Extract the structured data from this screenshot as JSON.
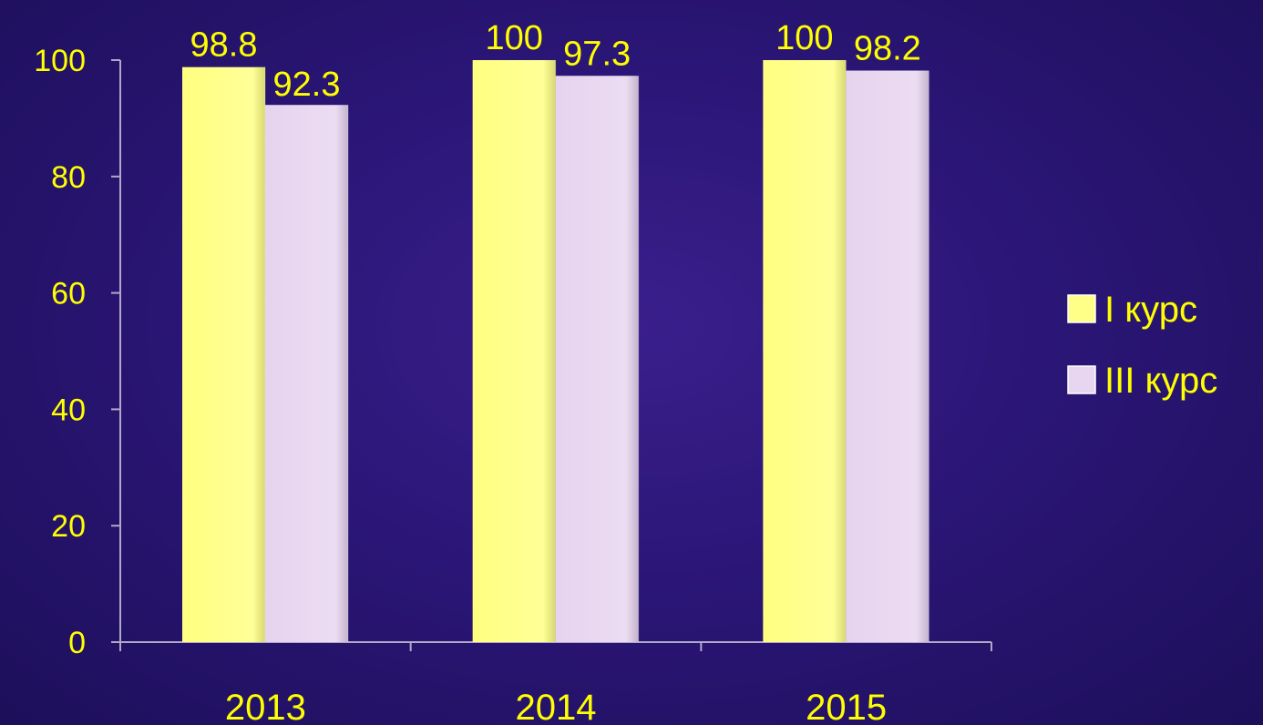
{
  "chart_data": {
    "type": "bar",
    "categories": [
      "2013",
      "2014",
      "2015"
    ],
    "series": [
      {
        "name": "I курс",
        "values": [
          98.8,
          100,
          100
        ],
        "color": "#ffff88"
      },
      {
        "name": "III курс",
        "values": [
          92.3,
          97.3,
          98.2
        ],
        "color": "#e8d6f0"
      }
    ],
    "data_labels": [
      [
        "98.8",
        "100",
        "100"
      ],
      [
        "92.3",
        "97.3",
        "98.2"
      ]
    ],
    "y_ticks": [
      "0",
      "20",
      "40",
      "60",
      "80",
      "100"
    ],
    "ylim": [
      0,
      100
    ],
    "title": "",
    "xlabel": "",
    "ylabel": "",
    "grid": false,
    "legend_position": "right",
    "text_color": "#ffff00",
    "axis_color": "#b0a8c8"
  }
}
